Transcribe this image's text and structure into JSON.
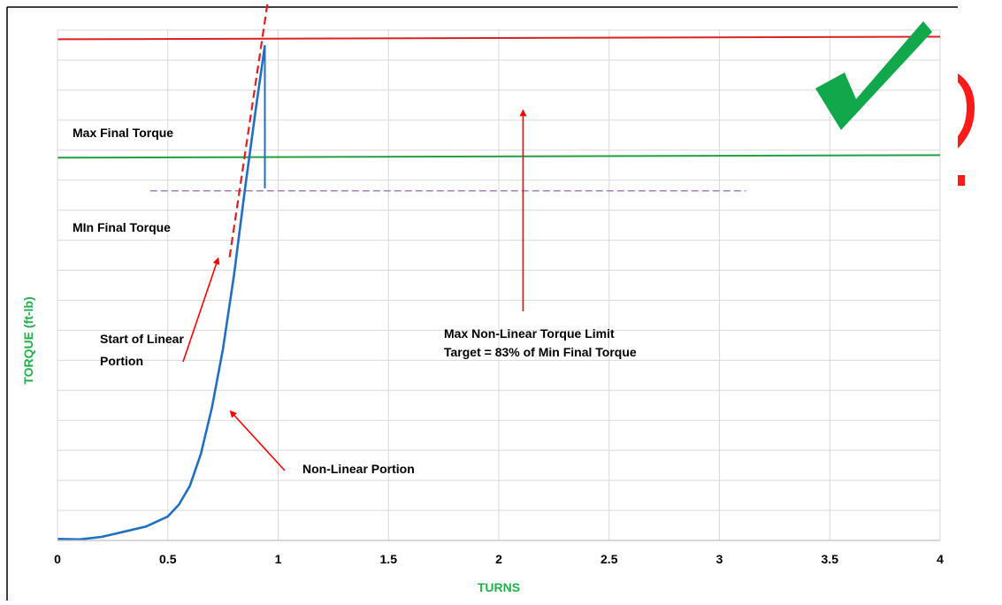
{
  "chart_data": {
    "type": "line",
    "xlabel": "TURNS",
    "ylabel": "TORQUE (ft-lb)",
    "xlim": [
      0,
      4
    ],
    "x_ticks": [
      0,
      0.5,
      1,
      1.5,
      2,
      2.5,
      3,
      3.5,
      4
    ],
    "x_tick_labels": [
      "0",
      "0.5",
      "1",
      "1.5",
      "2",
      "2.5",
      "3",
      "3.5",
      "4"
    ],
    "ylim": [
      0,
      100
    ],
    "grid": {
      "vertical": true,
      "horizontal": true
    },
    "series": [
      {
        "color": "#1f6fc5",
        "points": [
          [
            0,
            0.3
          ],
          [
            0.1,
            0.2
          ],
          [
            0.2,
            0.7
          ],
          [
            0.3,
            1.7
          ],
          [
            0.4,
            2.7
          ],
          [
            0.5,
            4.7
          ],
          [
            0.55,
            7.0
          ],
          [
            0.6,
            10.7
          ],
          [
            0.65,
            17.0
          ],
          [
            0.7,
            26.0
          ],
          [
            0.75,
            37.5
          ],
          [
            0.8,
            52.0
          ],
          [
            0.85,
            69.0
          ],
          [
            0.9,
            85.0
          ],
          [
            0.94,
            97.0
          ]
        ]
      },
      {
        "color": "#1f6fc5",
        "points": [
          [
            0.94,
            97.0
          ],
          [
            0.94,
            69.0
          ]
        ]
      }
    ],
    "reference_lines": [
      {
        "label": "Max Final Torque",
        "y_start": 98.2,
        "y_end": 98.7,
        "color": "#e02020",
        "style": "solid"
      },
      {
        "label": "MIn Final Torque",
        "y_start": 75.0,
        "y_end": 75.5,
        "color": "#20a040",
        "style": "solid"
      },
      {
        "y": 68.5,
        "x_start": 0.42,
        "x_end": 3.12,
        "color": "#a77fc4",
        "style": "dashed"
      }
    ],
    "trend_line": {
      "x_start": 0.78,
      "y_start": 55.5,
      "x_end": 0.97,
      "y_end": 110.5,
      "color": "#e02020",
      "style": "dashed"
    },
    "annotations": [
      {
        "text": [
          "Start of Linear",
          "Portion"
        ],
        "arrow_to": [
          0.73,
          55.5
        ]
      },
      {
        "text": [
          "Non-Linear Portion"
        ],
        "arrow_to": [
          0.78,
          25.5
        ]
      },
      {
        "text": [
          "Max Non-Linear Torque Limit",
          "Target = 83% of Min Final Torque"
        ],
        "arrow_to": [
          2.11,
          84.5
        ]
      }
    ],
    "colors": {
      "axis_title": "#21b04b",
      "checkmark": "#10a84a",
      "mark": "#ff1a1a"
    }
  }
}
